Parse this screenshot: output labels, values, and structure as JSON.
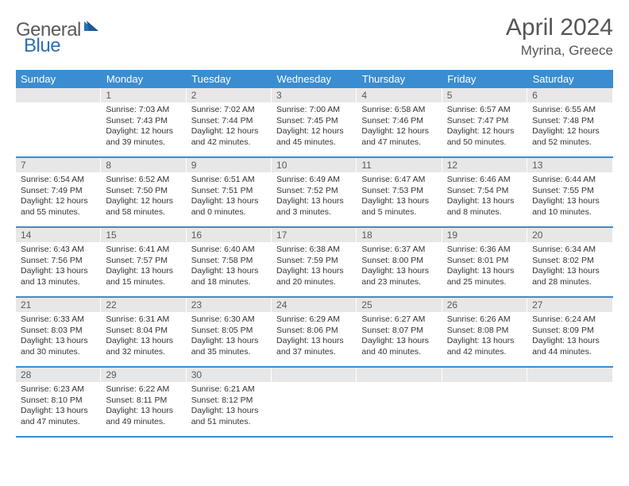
{
  "brand": {
    "name1": "General",
    "name2": "Blue"
  },
  "title": "April 2024",
  "location": "Myrina, Greece",
  "colors": {
    "header_bg": "#3a8dd0",
    "header_text": "#ffffff",
    "daynum_bg": "#e7e7e7",
    "daynum_text": "#5a5a5a",
    "rule": "#3a8dd0",
    "body_text": "#333333",
    "page_bg": "#ffffff",
    "logo_gray": "#5a5a5a",
    "logo_blue": "#2a6fb5"
  },
  "weekdays": [
    "Sunday",
    "Monday",
    "Tuesday",
    "Wednesday",
    "Thursday",
    "Friday",
    "Saturday"
  ],
  "weeks": [
    [
      {
        "n": "",
        "sr": "",
        "ss": "",
        "dl": ""
      },
      {
        "n": "1",
        "sr": "Sunrise: 7:03 AM",
        "ss": "Sunset: 7:43 PM",
        "dl": "Daylight: 12 hours and 39 minutes."
      },
      {
        "n": "2",
        "sr": "Sunrise: 7:02 AM",
        "ss": "Sunset: 7:44 PM",
        "dl": "Daylight: 12 hours and 42 minutes."
      },
      {
        "n": "3",
        "sr": "Sunrise: 7:00 AM",
        "ss": "Sunset: 7:45 PM",
        "dl": "Daylight: 12 hours and 45 minutes."
      },
      {
        "n": "4",
        "sr": "Sunrise: 6:58 AM",
        "ss": "Sunset: 7:46 PM",
        "dl": "Daylight: 12 hours and 47 minutes."
      },
      {
        "n": "5",
        "sr": "Sunrise: 6:57 AM",
        "ss": "Sunset: 7:47 PM",
        "dl": "Daylight: 12 hours and 50 minutes."
      },
      {
        "n": "6",
        "sr": "Sunrise: 6:55 AM",
        "ss": "Sunset: 7:48 PM",
        "dl": "Daylight: 12 hours and 52 minutes."
      }
    ],
    [
      {
        "n": "7",
        "sr": "Sunrise: 6:54 AM",
        "ss": "Sunset: 7:49 PM",
        "dl": "Daylight: 12 hours and 55 minutes."
      },
      {
        "n": "8",
        "sr": "Sunrise: 6:52 AM",
        "ss": "Sunset: 7:50 PM",
        "dl": "Daylight: 12 hours and 58 minutes."
      },
      {
        "n": "9",
        "sr": "Sunrise: 6:51 AM",
        "ss": "Sunset: 7:51 PM",
        "dl": "Daylight: 13 hours and 0 minutes."
      },
      {
        "n": "10",
        "sr": "Sunrise: 6:49 AM",
        "ss": "Sunset: 7:52 PM",
        "dl": "Daylight: 13 hours and 3 minutes."
      },
      {
        "n": "11",
        "sr": "Sunrise: 6:47 AM",
        "ss": "Sunset: 7:53 PM",
        "dl": "Daylight: 13 hours and 5 minutes."
      },
      {
        "n": "12",
        "sr": "Sunrise: 6:46 AM",
        "ss": "Sunset: 7:54 PM",
        "dl": "Daylight: 13 hours and 8 minutes."
      },
      {
        "n": "13",
        "sr": "Sunrise: 6:44 AM",
        "ss": "Sunset: 7:55 PM",
        "dl": "Daylight: 13 hours and 10 minutes."
      }
    ],
    [
      {
        "n": "14",
        "sr": "Sunrise: 6:43 AM",
        "ss": "Sunset: 7:56 PM",
        "dl": "Daylight: 13 hours and 13 minutes."
      },
      {
        "n": "15",
        "sr": "Sunrise: 6:41 AM",
        "ss": "Sunset: 7:57 PM",
        "dl": "Daylight: 13 hours and 15 minutes."
      },
      {
        "n": "16",
        "sr": "Sunrise: 6:40 AM",
        "ss": "Sunset: 7:58 PM",
        "dl": "Daylight: 13 hours and 18 minutes."
      },
      {
        "n": "17",
        "sr": "Sunrise: 6:38 AM",
        "ss": "Sunset: 7:59 PM",
        "dl": "Daylight: 13 hours and 20 minutes."
      },
      {
        "n": "18",
        "sr": "Sunrise: 6:37 AM",
        "ss": "Sunset: 8:00 PM",
        "dl": "Daylight: 13 hours and 23 minutes."
      },
      {
        "n": "19",
        "sr": "Sunrise: 6:36 AM",
        "ss": "Sunset: 8:01 PM",
        "dl": "Daylight: 13 hours and 25 minutes."
      },
      {
        "n": "20",
        "sr": "Sunrise: 6:34 AM",
        "ss": "Sunset: 8:02 PM",
        "dl": "Daylight: 13 hours and 28 minutes."
      }
    ],
    [
      {
        "n": "21",
        "sr": "Sunrise: 6:33 AM",
        "ss": "Sunset: 8:03 PM",
        "dl": "Daylight: 13 hours and 30 minutes."
      },
      {
        "n": "22",
        "sr": "Sunrise: 6:31 AM",
        "ss": "Sunset: 8:04 PM",
        "dl": "Daylight: 13 hours and 32 minutes."
      },
      {
        "n": "23",
        "sr": "Sunrise: 6:30 AM",
        "ss": "Sunset: 8:05 PM",
        "dl": "Daylight: 13 hours and 35 minutes."
      },
      {
        "n": "24",
        "sr": "Sunrise: 6:29 AM",
        "ss": "Sunset: 8:06 PM",
        "dl": "Daylight: 13 hours and 37 minutes."
      },
      {
        "n": "25",
        "sr": "Sunrise: 6:27 AM",
        "ss": "Sunset: 8:07 PM",
        "dl": "Daylight: 13 hours and 40 minutes."
      },
      {
        "n": "26",
        "sr": "Sunrise: 6:26 AM",
        "ss": "Sunset: 8:08 PM",
        "dl": "Daylight: 13 hours and 42 minutes."
      },
      {
        "n": "27",
        "sr": "Sunrise: 6:24 AM",
        "ss": "Sunset: 8:09 PM",
        "dl": "Daylight: 13 hours and 44 minutes."
      }
    ],
    [
      {
        "n": "28",
        "sr": "Sunrise: 6:23 AM",
        "ss": "Sunset: 8:10 PM",
        "dl": "Daylight: 13 hours and 47 minutes."
      },
      {
        "n": "29",
        "sr": "Sunrise: 6:22 AM",
        "ss": "Sunset: 8:11 PM",
        "dl": "Daylight: 13 hours and 49 minutes."
      },
      {
        "n": "30",
        "sr": "Sunrise: 6:21 AM",
        "ss": "Sunset: 8:12 PM",
        "dl": "Daylight: 13 hours and 51 minutes."
      },
      {
        "n": "",
        "sr": "",
        "ss": "",
        "dl": ""
      },
      {
        "n": "",
        "sr": "",
        "ss": "",
        "dl": ""
      },
      {
        "n": "",
        "sr": "",
        "ss": "",
        "dl": ""
      },
      {
        "n": "",
        "sr": "",
        "ss": "",
        "dl": ""
      }
    ]
  ]
}
